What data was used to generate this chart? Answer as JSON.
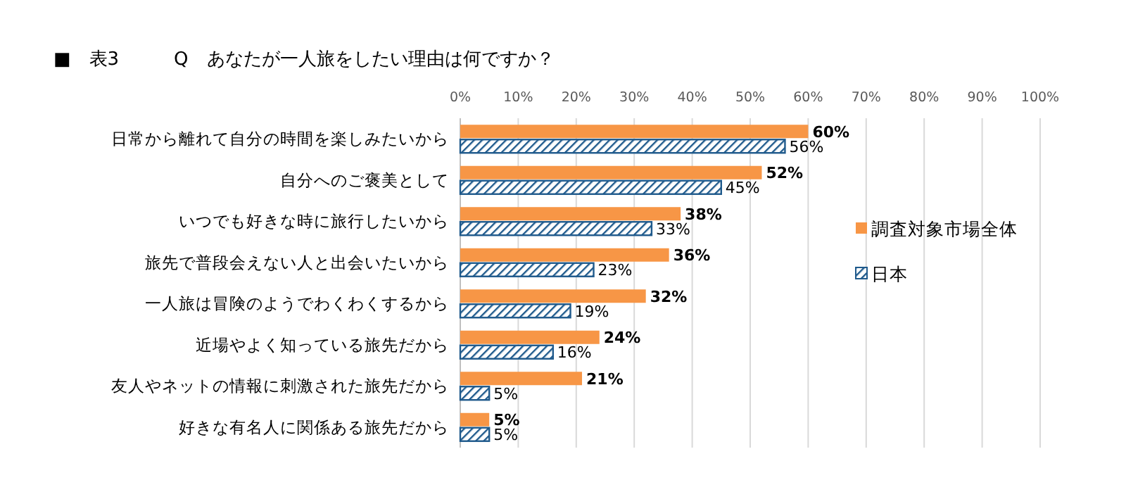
{
  "chart_data": {
    "type": "bar",
    "orientation": "horizontal",
    "title": "■　表3　　　Q　あなたが一人旅をしたい理由は何ですか？",
    "categories": [
      "日常から離れて自分の時間を楽しみたいから",
      "自分へのご褒美として",
      "いつでも好きな時に旅行したいから",
      "旅先で普段会えない人と出会いたいから",
      "一人旅は冒険のようでわくわくするから",
      "近場やよく知っている旅先だから",
      "友人やネットの情報に刺激された旅先だから",
      "好きな有名人に関係ある旅先だから"
    ],
    "series": [
      {
        "name": "調査対象市場全体",
        "color": "#f79646",
        "values": [
          60,
          52,
          38,
          36,
          32,
          24,
          21,
          5
        ],
        "value_labels": [
          "60%",
          "52%",
          "38%",
          "36%",
          "32%",
          "24%",
          "21%",
          "5%"
        ]
      },
      {
        "name": "日本",
        "color": "#1f5a8c",
        "values": [
          56,
          45,
          33,
          23,
          19,
          16,
          5,
          5
        ],
        "value_labels": [
          "56%",
          "45%",
          "33%",
          "23%",
          "19%",
          "16%",
          "5%",
          "5%"
        ]
      }
    ],
    "xlim": [
      0,
      100
    ],
    "xticks": [
      {
        "value": 0,
        "label": "0%"
      },
      {
        "value": 10,
        "label": "10%"
      },
      {
        "value": 20,
        "label": "20%"
      },
      {
        "value": 30,
        "label": "30%"
      },
      {
        "value": 40,
        "label": "40%"
      },
      {
        "value": 50,
        "label": "50%"
      },
      {
        "value": 60,
        "label": "60%"
      },
      {
        "value": 70,
        "label": "70%"
      },
      {
        "value": 80,
        "label": "80%"
      },
      {
        "value": 90,
        "label": "90%"
      },
      {
        "value": 100,
        "label": "100%"
      }
    ],
    "grid": "x",
    "legend": "right"
  }
}
